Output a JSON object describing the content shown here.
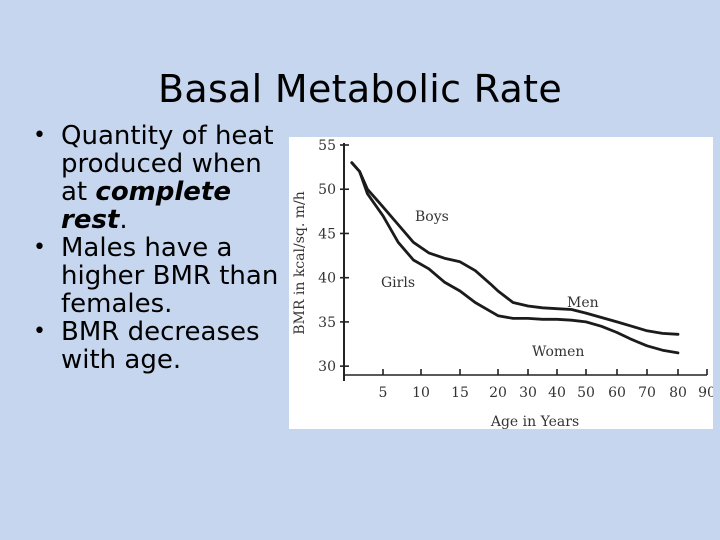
{
  "slide": {
    "title": "Basal Metabolic Rate",
    "bullets": [
      {
        "parts": [
          "Quantity of heat produced when at ",
          "complete rest",
          "."
        ]
      },
      {
        "parts": [
          "Males have a higher BMR than females."
        ]
      },
      {
        "parts": [
          "BMR decreases with age."
        ]
      }
    ]
  },
  "chart_data": {
    "type": "line",
    "ylabel": "BMR in kcal/sq. m/h",
    "xlabel": "Age in Years",
    "x_ticks": [
      "5",
      "10",
      "15",
      "20",
      "30",
      "40",
      "50",
      "60",
      "70",
      "80",
      "90"
    ],
    "y_ticks": [
      30,
      35,
      40,
      45,
      50,
      55
    ],
    "ylim": [
      29,
      55
    ],
    "grid": false,
    "series": [
      {
        "name": "Boys / Men",
        "labels": [
          "Boys",
          "Men"
        ],
        "points": [
          [
            1,
            53
          ],
          [
            2,
            52
          ],
          [
            3,
            50
          ],
          [
            5,
            48
          ],
          [
            7,
            46
          ],
          [
            9,
            44
          ],
          [
            11,
            42.8
          ],
          [
            13,
            42.2
          ],
          [
            15,
            41.8
          ],
          [
            17,
            40.8
          ],
          [
            19,
            39.3
          ],
          [
            20,
            38.5
          ],
          [
            25,
            37.2
          ],
          [
            30,
            36.8
          ],
          [
            35,
            36.6
          ],
          [
            40,
            36.5
          ],
          [
            45,
            36.4
          ],
          [
            50,
            36.0
          ],
          [
            55,
            35.5
          ],
          [
            60,
            35.0
          ],
          [
            65,
            34.5
          ],
          [
            70,
            34.0
          ],
          [
            75,
            33.7
          ],
          [
            80,
            33.6
          ]
        ]
      },
      {
        "name": "Girls / Women",
        "labels": [
          "Girls",
          "Women"
        ],
        "points": [
          [
            1,
            53
          ],
          [
            2,
            52
          ],
          [
            3,
            49.5
          ],
          [
            5,
            47
          ],
          [
            7,
            44
          ],
          [
            9,
            42
          ],
          [
            11,
            41
          ],
          [
            13,
            39.5
          ],
          [
            15,
            38.5
          ],
          [
            17,
            37.2
          ],
          [
            19,
            36.2
          ],
          [
            20,
            35.7
          ],
          [
            25,
            35.4
          ],
          [
            30,
            35.4
          ],
          [
            35,
            35.3
          ],
          [
            40,
            35.3
          ],
          [
            45,
            35.2
          ],
          [
            50,
            35.0
          ],
          [
            55,
            34.5
          ],
          [
            60,
            33.8
          ],
          [
            65,
            33.0
          ],
          [
            70,
            32.3
          ],
          [
            75,
            31.8
          ],
          [
            80,
            31.5
          ]
        ]
      }
    ]
  }
}
